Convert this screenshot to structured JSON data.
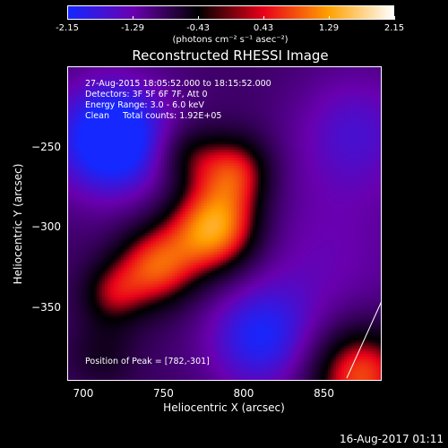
{
  "chart_data": {
    "type": "heatmap",
    "title": "Reconstructed RHESSI Image",
    "xlabel": "Heliocentric X (arcsec)",
    "ylabel": "Heliocentric Y (arcsec)",
    "xlim": [
      690,
      886
    ],
    "ylim": [
      -396,
      -200
    ],
    "x_ticks": [
      "700",
      "750",
      "800",
      "850"
    ],
    "y_ticks": [
      "-250",
      "-300",
      "-350"
    ],
    "colorbar": {
      "min": -2.15,
      "max": 2.15,
      "ticks": [
        "-2.15",
        "-1.29",
        "-0.43",
        "0.43",
        "1.29",
        "2.15"
      ],
      "units": "(photons cm⁻² s⁻¹ asec⁻²)",
      "colors": [
        "#1428ff",
        "#6a00b0",
        "#000000",
        "#e8001a",
        "#ffa000",
        "#ffffff"
      ]
    },
    "info_lines": [
      "27-Aug-2015 18:05:52.000 to 18:15:52.000",
      "Detectors: 3F 5F 6F 7F, Att 0",
      "Energy Range: 3.0 - 6.0 keV",
      "Clean     Total counts: 1.92E+05"
    ],
    "peak_label": "Position of Peak = [782,-301]",
    "peak": [
      782,
      -301
    ]
  },
  "footer": {
    "date": "16-Aug-2017 01:11"
  }
}
